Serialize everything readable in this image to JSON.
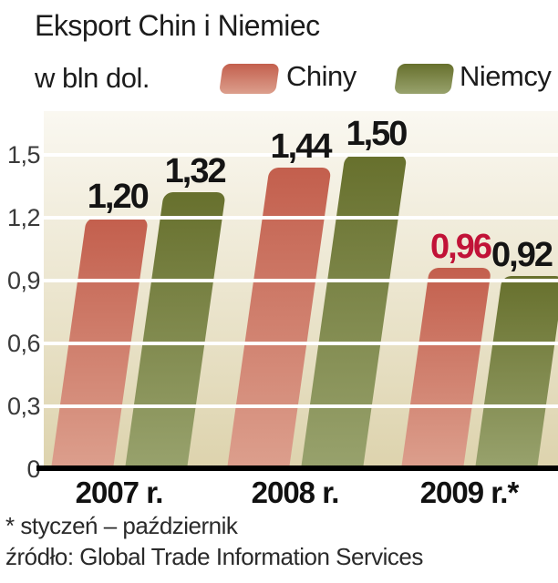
{
  "chart_data": {
    "type": "bar",
    "title": "Eksport Chin i Niemiec",
    "subtitle": "w bln dol.",
    "categories": [
      "2007 r.",
      "2008 r.",
      "2009 r.*"
    ],
    "series": [
      {
        "name": "Chiny",
        "values": [
          1.2,
          1.44,
          0.96
        ],
        "labels": [
          "1,20",
          "1,44",
          "0,96"
        ],
        "label_colors": [
          "#141414",
          "#141414",
          "#c11237"
        ],
        "color_top": "#c35f4d",
        "color_bottom": "#dc9f8d"
      },
      {
        "name": "Niemcy",
        "values": [
          1.32,
          1.5,
          0.92
        ],
        "labels": [
          "1,32",
          "1,50",
          "0,92"
        ],
        "label_colors": [
          "#141414",
          "#141414",
          "#141414"
        ],
        "color_top": "#67702d",
        "color_bottom": "#98a26d"
      }
    ],
    "yticks": [
      {
        "value": 0,
        "label": "0"
      },
      {
        "value": 0.3,
        "label": "0,3"
      },
      {
        "value": 0.6,
        "label": "0,6"
      },
      {
        "value": 0.9,
        "label": "0,9"
      },
      {
        "value": 1.2,
        "label": "1,2"
      },
      {
        "value": 1.5,
        "label": "1,5"
      }
    ],
    "ylim": [
      0,
      1.5
    ],
    "grid": "horizontal-white-over-bars",
    "legend_position": "top"
  },
  "colors": {
    "plot_bg_top": "#faf8f1",
    "plot_bg_bottom": "#ddd3ad",
    "gridline": "#ffffff",
    "axis_line": "#000000",
    "page_bg": "#ffffff"
  },
  "footnotes": {
    "line1": "* styczeń – październik",
    "line2": "źródło: Global Trade Information Services"
  }
}
